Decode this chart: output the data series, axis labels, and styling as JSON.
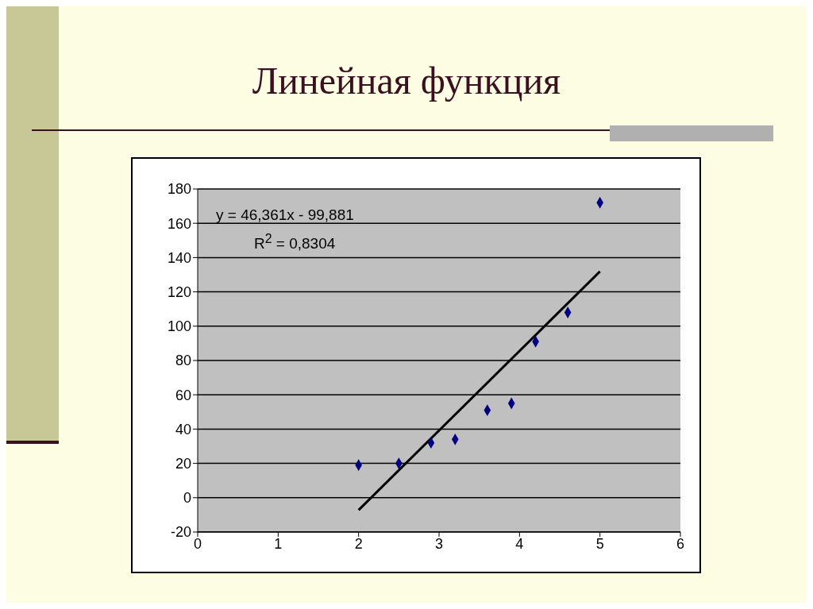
{
  "chart_data": {
    "type": "scatter",
    "title": "Линейная функция",
    "marker": "diamond",
    "grid": "y",
    "xlim": [
      0,
      6
    ],
    "xticks": [
      0,
      1,
      2,
      3,
      4,
      5,
      6
    ],
    "ylim": [
      -20,
      180
    ],
    "yticks": [
      -20,
      0,
      20,
      40,
      60,
      80,
      100,
      120,
      140,
      160,
      180
    ],
    "annotations": [
      "y = 46,361x - 99,881",
      "R$^{2}$ = 0,8304"
    ],
    "series": [
      {
        "color": "#000080",
        "x": [
          2,
          2.5,
          2.9,
          3.2,
          3.6,
          3.9,
          4.2,
          4.6,
          5
        ],
        "values": [
          19,
          20,
          32,
          34,
          51,
          55,
          91,
          108,
          172
        ]
      },
      {
        "type": "line",
        "marker": "none",
        "color": "#000000",
        "x": [
          2,
          5
        ],
        "values": [
          -7.2,
          131.9
        ]
      }
    ]
  }
}
